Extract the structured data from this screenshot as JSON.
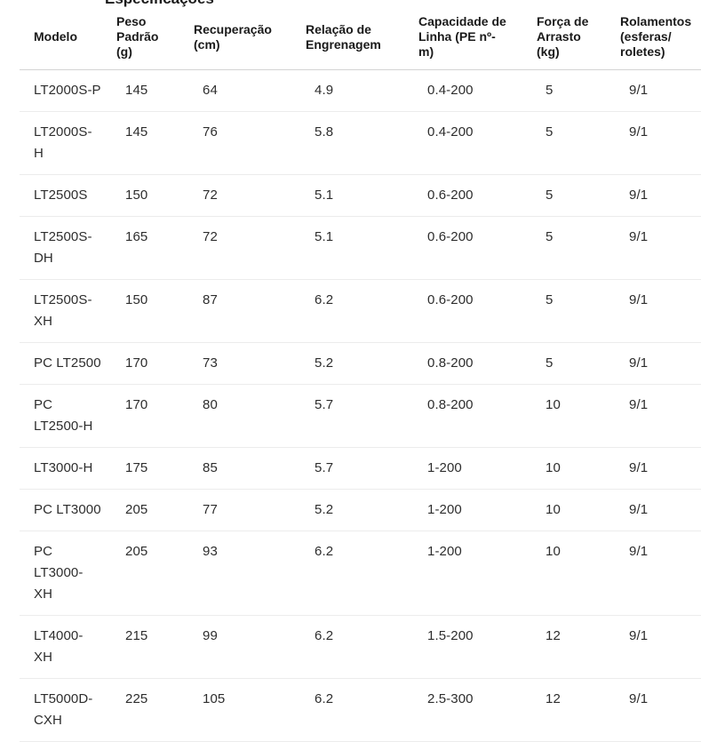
{
  "page": {
    "clipped_heading_fragment": "Especificações"
  },
  "table": {
    "columns": [
      {
        "label": "Modelo"
      },
      {
        "label": "Peso\nPadrão\n(g)"
      },
      {
        "label": "Recuperação\n(cm)"
      },
      {
        "label": "Relação de\nEngrenagem"
      },
      {
        "label": "Capacidade de\nLinha (PE nº-\nm)"
      },
      {
        "label": "Força de\nArrasto\n(kg)"
      },
      {
        "label": "Rolamentos\n(esferas/\nroletes)"
      }
    ],
    "rows": [
      {
        "cells": [
          "LT2000S-P",
          "145",
          "64",
          "4.9",
          "0.4-200",
          "5",
          "9/1"
        ]
      },
      {
        "cells": [
          "LT2000S-\nH",
          "145",
          "76",
          "5.8",
          "0.4-200",
          "5",
          "9/1"
        ]
      },
      {
        "cells": [
          "LT2500S",
          "150",
          "72",
          "5.1",
          "0.6-200",
          "5",
          "9/1"
        ]
      },
      {
        "cells": [
          "LT2500S-\nDH",
          "165",
          "72",
          "5.1",
          "0.6-200",
          "5",
          "9/1"
        ]
      },
      {
        "cells": [
          "LT2500S-\nXH",
          "150",
          "87",
          "6.2",
          "0.6-200",
          "5",
          "9/1"
        ]
      },
      {
        "cells": [
          "PC LT2500",
          "170",
          "73",
          "5.2",
          "0.8-200",
          "5",
          "9/1"
        ]
      },
      {
        "cells": [
          "PC\nLT2500-H",
          "170",
          "80",
          "5.7",
          "0.8-200",
          "10",
          "9/1"
        ]
      },
      {
        "cells": [
          "LT3000-H",
          "175",
          "85",
          "5.7",
          "1-200",
          "10",
          "9/1"
        ]
      },
      {
        "cells": [
          "PC LT3000",
          "205",
          "77",
          "5.2",
          "1-200",
          "10",
          "9/1"
        ]
      },
      {
        "cells": [
          "PC\nLT3000-\nXH",
          "205",
          "93",
          "6.2",
          "1-200",
          "10",
          "9/1"
        ]
      },
      {
        "cells": [
          "LT4000-\nXH",
          "215",
          "99",
          "6.2",
          "1.5-200",
          "12",
          "9/1"
        ]
      },
      {
        "cells": [
          "LT5000D-\nCXH",
          "225",
          "105",
          "6.2",
          "2.5-300",
          "12",
          "9/1"
        ]
      }
    ],
    "colors": {
      "header_border": "#d4d4d4",
      "row_border": "#ececec",
      "header_text": "#1a1a1a",
      "cell_text": "#2d2d2d",
      "background": "#ffffff"
    }
  }
}
